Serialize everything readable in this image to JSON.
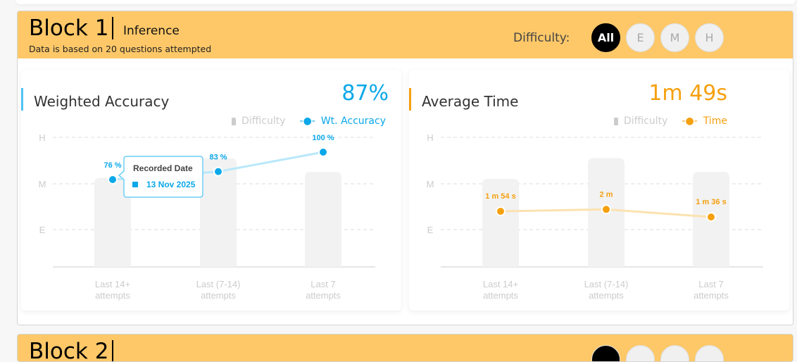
{
  "block1": {
    "title": "Block 1",
    "subtitle": "Inference",
    "note": "Data is based on 20 questions attempted",
    "difficulty_label": "Difficulty:",
    "difficulty_options": [
      {
        "label": "All",
        "selected": true
      },
      {
        "label": "E",
        "selected": false
      },
      {
        "label": "M",
        "selected": false
      },
      {
        "label": "H",
        "selected": false
      }
    ],
    "accent_header": "#fec868"
  },
  "block2": {
    "title": "Block 2"
  },
  "chart_data": [
    {
      "type": "bar+line",
      "title": "Weighted Accuracy",
      "summary_value": "87%",
      "color": "#0aa8e9",
      "legend": [
        "Difficulty",
        "Wt. Accuracy"
      ],
      "legend_placement": "top-right",
      "y_ticks": [
        "H",
        "M",
        "E"
      ],
      "categories": [
        [
          "Last 14+",
          "attempts"
        ],
        [
          "Last (7-14)",
          "attempts"
        ],
        [
          "Last 7",
          "attempts"
        ]
      ],
      "difficulty_levels": [
        2.12,
        2.55,
        2.25
      ],
      "values": [
        76,
        83,
        100
      ],
      "labels": [
        "76 %",
        "83 %",
        "100 %"
      ],
      "tooltip": {
        "title": "Recorded Date",
        "value": "13 Nov 2025",
        "index": 0
      }
    },
    {
      "type": "bar+line",
      "title": "Average Time",
      "summary_value": "1m 49s",
      "color": "#f5a00f",
      "legend": [
        "Difficulty",
        "Time"
      ],
      "legend_placement": "top-right",
      "y_ticks": [
        "H",
        "M",
        "E"
      ],
      "categories": [
        [
          "Last 14+",
          "attempts"
        ],
        [
          "Last (7-14)",
          "attempts"
        ],
        [
          "Last 7",
          "attempts"
        ]
      ],
      "difficulty_levels": [
        2.1,
        2.55,
        2.25
      ],
      "values_seconds": [
        114,
        120,
        96
      ],
      "labels": [
        "1 m 54 s",
        "2 m",
        "1 m 36 s"
      ]
    }
  ]
}
